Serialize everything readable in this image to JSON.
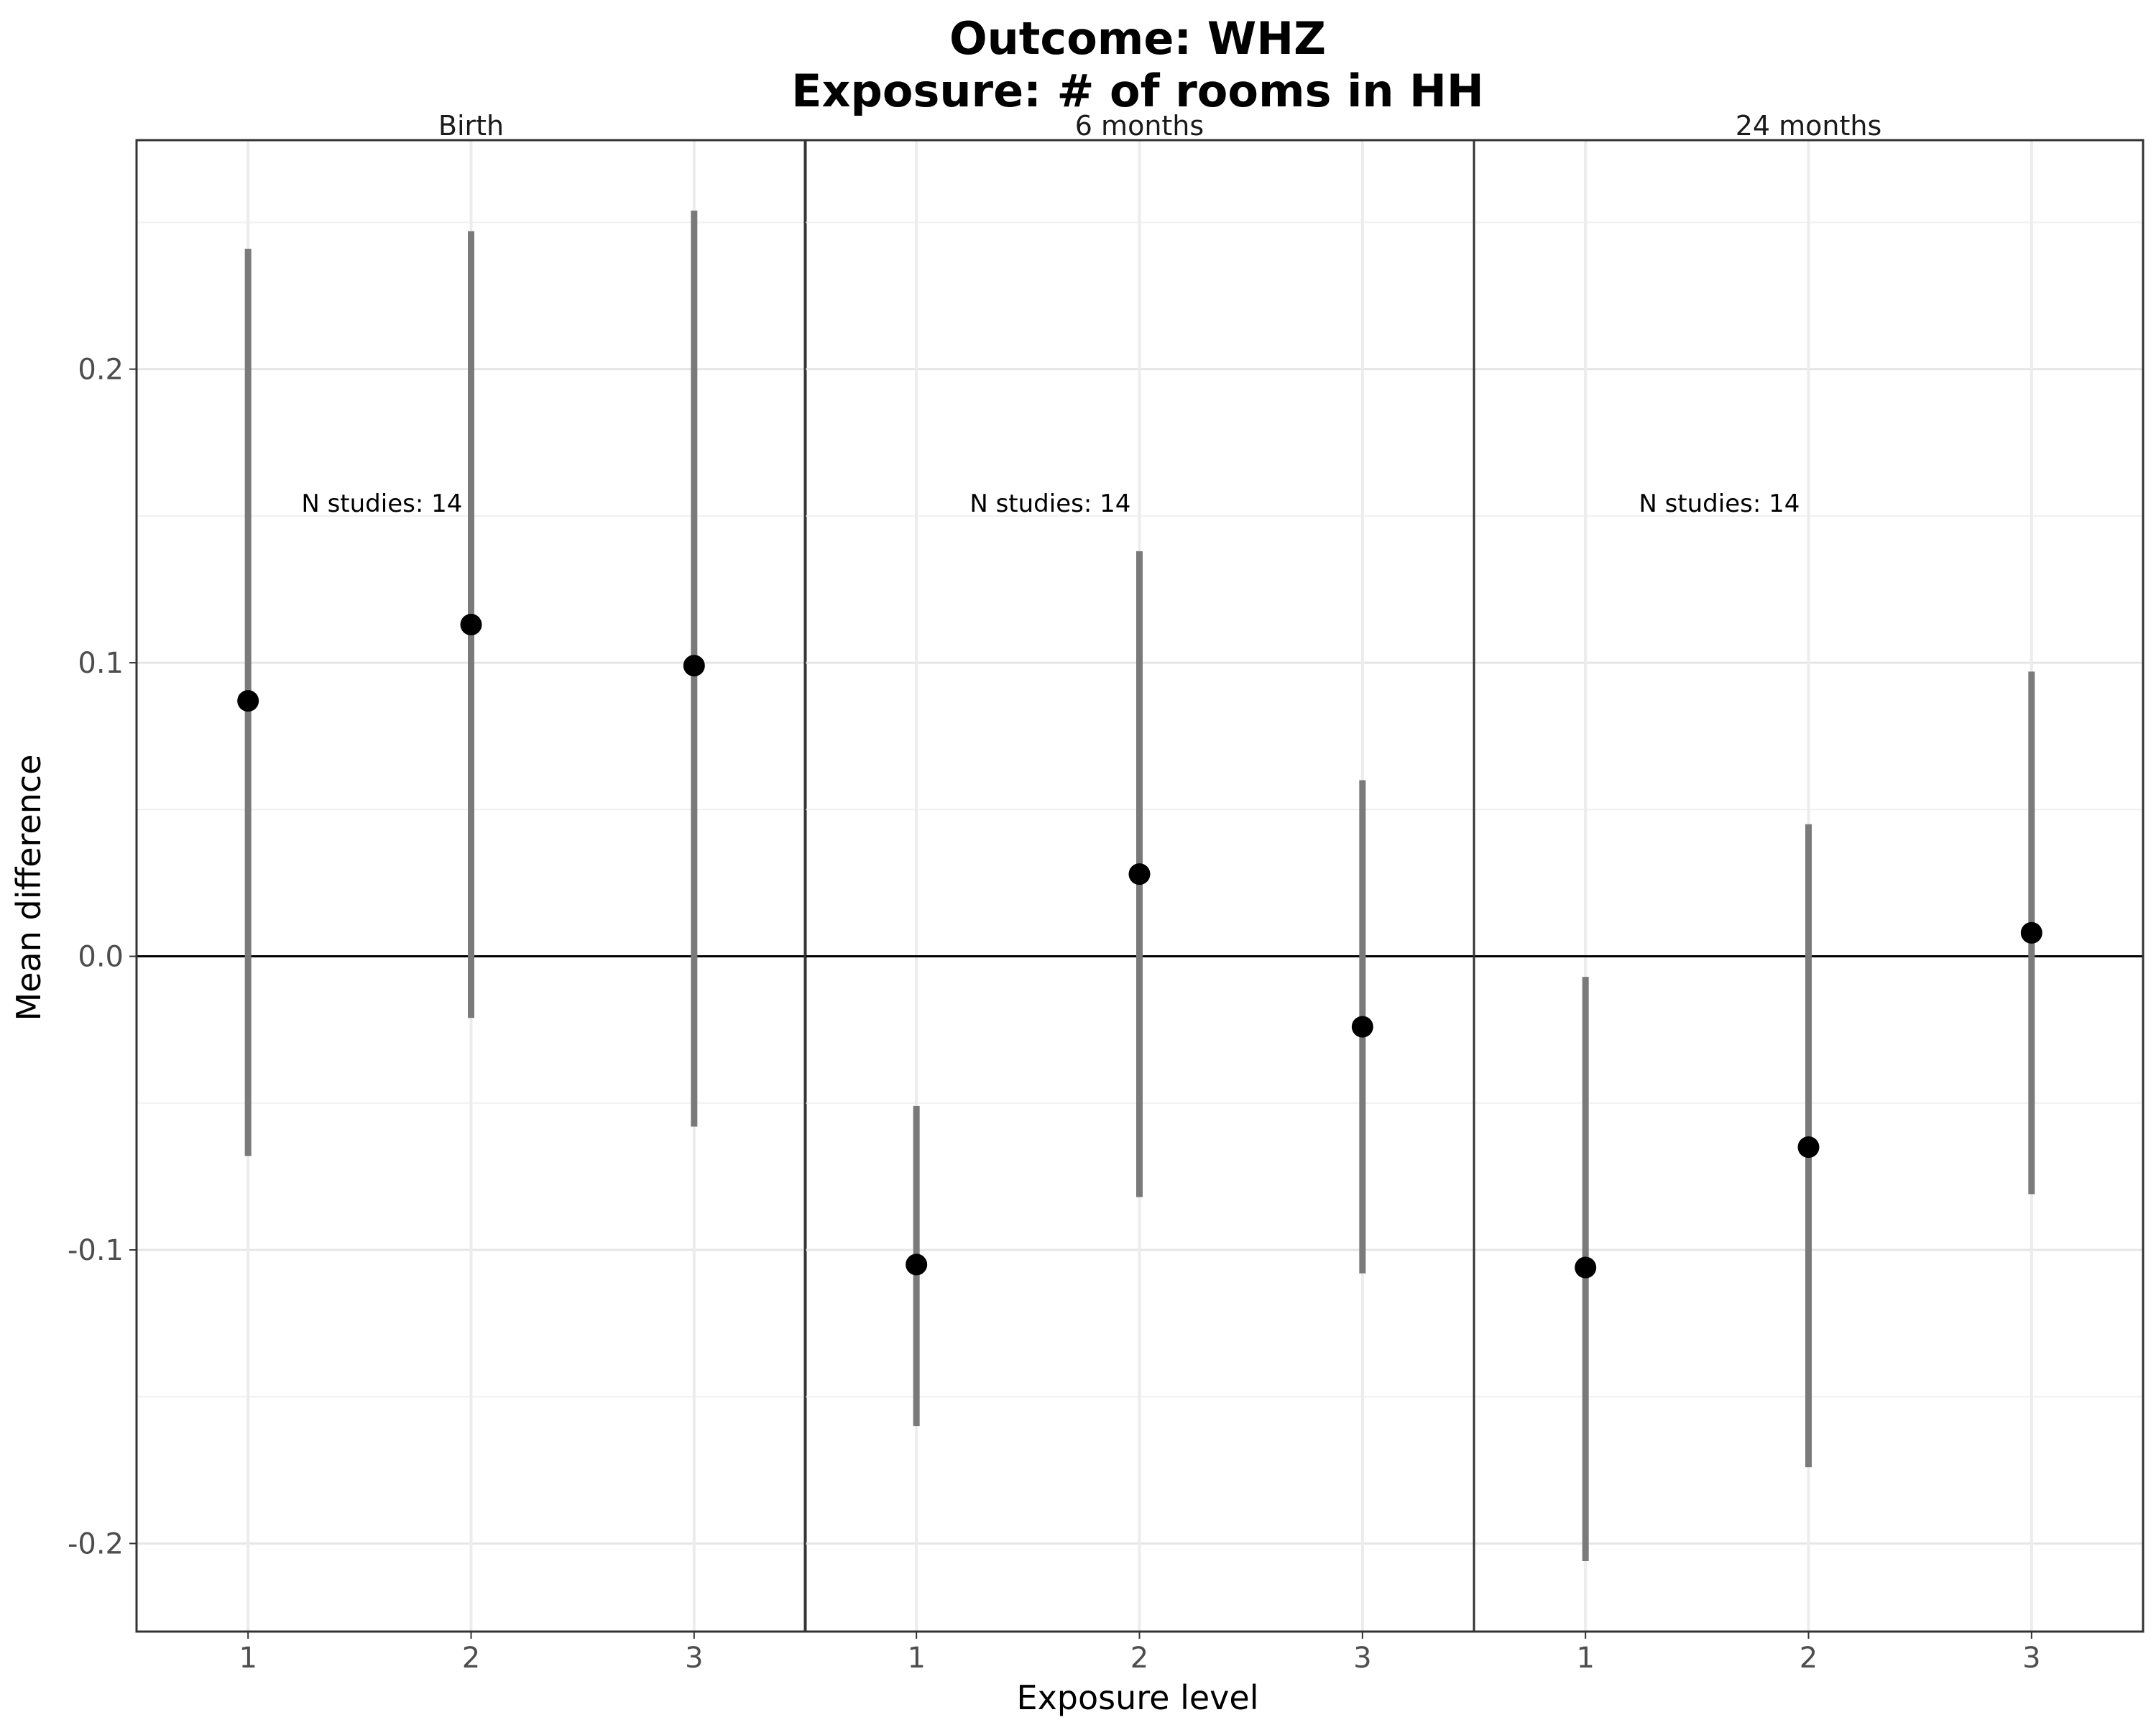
{
  "chart_data": {
    "type": "scatter",
    "title": [
      "Outcome: WHZ",
      "Exposure: # of rooms in HH"
    ],
    "xlabel": "Exposure level",
    "ylabel": "Mean difference",
    "ylim": [
      -0.23,
      0.278
    ],
    "yticks": [
      -0.2,
      -0.1,
      0.0,
      0.1,
      0.2
    ],
    "ytick_labels": [
      "-0.2",
      "-0.1",
      "0.0",
      "0.1",
      "0.2"
    ],
    "grid": true,
    "reference_line": 0,
    "point_color": "#000000",
    "errorbar_color": "#7a7a7a",
    "facets": [
      {
        "label": "Birth",
        "categories": [
          "1",
          "2",
          "3"
        ],
        "estimate": [
          0.087,
          0.113,
          0.099
        ],
        "lower": [
          -0.068,
          -0.021,
          -0.058
        ],
        "upper": [
          0.241,
          0.247,
          0.254
        ],
        "annotation": "N studies: 14"
      },
      {
        "label": "6 months",
        "categories": [
          "1",
          "2",
          "3"
        ],
        "estimate": [
          -0.105,
          0.028,
          -0.024
        ],
        "lower": [
          -0.16,
          -0.082,
          -0.108
        ],
        "upper": [
          -0.051,
          0.138,
          0.06
        ],
        "annotation": "N studies: 14"
      },
      {
        "label": "24 months",
        "categories": [
          "1",
          "2",
          "3"
        ],
        "estimate": [
          -0.106,
          -0.065,
          0.008
        ],
        "lower": [
          -0.206,
          -0.174,
          -0.081
        ],
        "upper": [
          -0.007,
          0.045,
          0.097
        ],
        "annotation": "N studies: 14"
      }
    ]
  }
}
